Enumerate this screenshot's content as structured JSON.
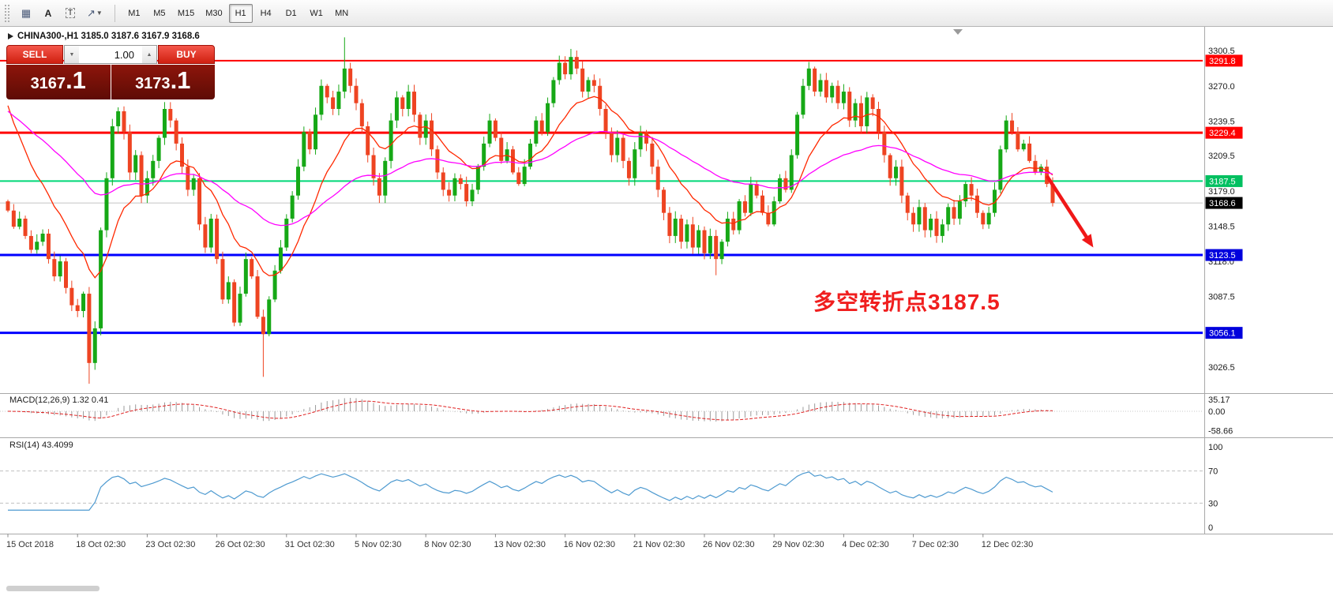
{
  "toolbar": {
    "tools": [
      {
        "name": "grid-tool",
        "glyph": "▦"
      },
      {
        "name": "insert-text",
        "glyph": "A"
      },
      {
        "name": "text-label",
        "glyph": "T"
      },
      {
        "name": "arrows-dropdown",
        "glyph": "↗",
        "caret": "▼"
      }
    ],
    "timeframes": [
      "M1",
      "M5",
      "M15",
      "M30",
      "H1",
      "H4",
      "D1",
      "W1",
      "MN"
    ],
    "active_timeframe": "H1"
  },
  "chart_header": {
    "symbol_line": "CHINA300-,H1  3185.0 3187.6 3167.9 3168.6"
  },
  "trade_panel": {
    "sell_label": "SELL",
    "buy_label": "BUY",
    "volume": "1.00",
    "volume_down_glyph": "▼",
    "volume_up_glyph": "▲",
    "sell_price_main": "3167",
    "sell_price_pips": ".1",
    "buy_price_main": "3173",
    "buy_price_pips": ".1"
  },
  "annotation": {
    "text": "多空转折点3187.5",
    "color": "#f01e1e"
  },
  "indicators": {
    "macd": {
      "label": "MACD(12,26,9) 1.32 0.41",
      "axis_labels": [
        "35.17",
        "0.00",
        "-58.66"
      ],
      "axis_values": [
        35.17,
        0,
        -58.66
      ]
    },
    "rsi": {
      "label": "RSI(14) 43.4099",
      "axis_labels": [
        "100",
        "70",
        "30",
        "0"
      ],
      "axis_values": [
        100,
        70,
        30,
        0
      ],
      "levels": [
        70,
        30
      ]
    }
  },
  "chart_data": {
    "type": "candlestick",
    "symbol": "CHINA300-",
    "timeframe": "H1",
    "ohlc_display": {
      "open": 3185.0,
      "high": 3187.6,
      "low": 3167.9,
      "close": 3168.6
    },
    "current_price": 3168.6,
    "y_ticks": [
      3300.5,
      3270.0,
      3239.5,
      3209.5,
      3179.0,
      3148.5,
      3118.0,
      3087.5,
      3057.0,
      3026.5
    ],
    "x_labels": [
      "15 Oct 2018",
      "18 Oct 02:30",
      "23 Oct 02:30",
      "26 Oct 02:30",
      "31 Oct 02:30",
      "5 Nov 02:30",
      "8 Nov 02:30",
      "13 Nov 02:30",
      "16 Nov 02:30",
      "21 Nov 02:30",
      "26 Nov 02:30",
      "29 Nov 02:30",
      "4 Dec 02:30",
      "7 Dec 02:30",
      "12 Dec 02:30"
    ],
    "x_label_every": 12,
    "hlines": [
      {
        "price": 3291.8,
        "color": "#ff0000",
        "width": 2,
        "label": "3291.8",
        "label_bg": "#ff0000"
      },
      {
        "price": 3229.4,
        "color": "#ff0000",
        "width": 3,
        "label": "3229.4",
        "label_bg": "#ff0000"
      },
      {
        "price": 3187.5,
        "color": "#00d878",
        "width": 2,
        "label": "3187.5",
        "label_bg": "#00c060"
      },
      {
        "price": 3123.5,
        "color": "#0000ff",
        "width": 3,
        "label": "3123.5",
        "label_bg": "#0000dd"
      },
      {
        "price": 3056.1,
        "color": "#0000ff",
        "width": 3,
        "label": "3056.1",
        "label_bg": "#0000dd"
      }
    ],
    "current_price_label": {
      "price": 3168.6,
      "label": "3168.6",
      "label_bg": "#000000",
      "line_color": "#c4c4c4"
    },
    "first_open": 3170,
    "closes": [
      3162,
      3148,
      3155,
      3140,
      3128,
      3135,
      3142,
      3120,
      3105,
      3118,
      3095,
      3080,
      3075,
      3090,
      3030,
      3060,
      3145,
      3190,
      3235,
      3248,
      3230,
      3195,
      3210,
      3175,
      3190,
      3205,
      3225,
      3250,
      3240,
      3220,
      3200,
      3180,
      3190,
      3150,
      3130,
      3155,
      3120,
      3085,
      3100,
      3065,
      3090,
      3120,
      3105,
      3070,
      3055,
      3085,
      3110,
      3130,
      3155,
      3175,
      3200,
      3230,
      3215,
      3245,
      3270,
      3260,
      3250,
      3265,
      3285,
      3270,
      3255,
      3235,
      3210,
      3190,
      3175,
      3205,
      3240,
      3260,
      3250,
      3265,
      3245,
      3225,
      3240,
      3215,
      3195,
      3180,
      3175,
      3190,
      3185,
      3170,
      3180,
      3200,
      3220,
      3240,
      3225,
      3205,
      3215,
      3195,
      3185,
      3200,
      3220,
      3240,
      3230,
      3255,
      3275,
      3290,
      3280,
      3295,
      3285,
      3265,
      3275,
      3270,
      3250,
      3230,
      3210,
      3225,
      3205,
      3190,
      3215,
      3230,
      3220,
      3200,
      3180,
      3160,
      3140,
      3155,
      3135,
      3150,
      3130,
      3145,
      3125,
      3140,
      3120,
      3135,
      3155,
      3145,
      3170,
      3160,
      3185,
      3175,
      3160,
      3150,
      3170,
      3190,
      3180,
      3210,
      3245,
      3270,
      3285,
      3265,
      3275,
      3260,
      3270,
      3255,
      3265,
      3240,
      3255,
      3235,
      3260,
      3250,
      3230,
      3210,
      3190,
      3200,
      3175,
      3160,
      3150,
      3165,
      3145,
      3155,
      3140,
      3150,
      3165,
      3155,
      3170,
      3185,
      3175,
      3160,
      3150,
      3160,
      3180,
      3215,
      3240,
      3230,
      3215,
      3220,
      3205,
      3195,
      3200,
      3185,
      3168.6
    ],
    "wick_overrides": {
      "14": {
        "low": 3012
      },
      "44": {
        "low": 3018
      },
      "58": {
        "high": 3312
      },
      "97": {
        "high": 3302
      },
      "122": {
        "low": 3106
      }
    },
    "moving_averages": [
      {
        "period": 13,
        "color": "#ff2800",
        "seed": 3268,
        "name": "fast-ma-line"
      },
      {
        "period": 45,
        "color": "#ff00ff",
        "seed": 3252,
        "name": "slow-ma-line"
      }
    ],
    "candle_up_color": "#16a816",
    "candle_down_color": "#ee4422",
    "arrow_annotation": {
      "from_index": 179,
      "from_price": 3192,
      "to_index": 187,
      "to_price": 3130,
      "color": "#f01818"
    }
  }
}
